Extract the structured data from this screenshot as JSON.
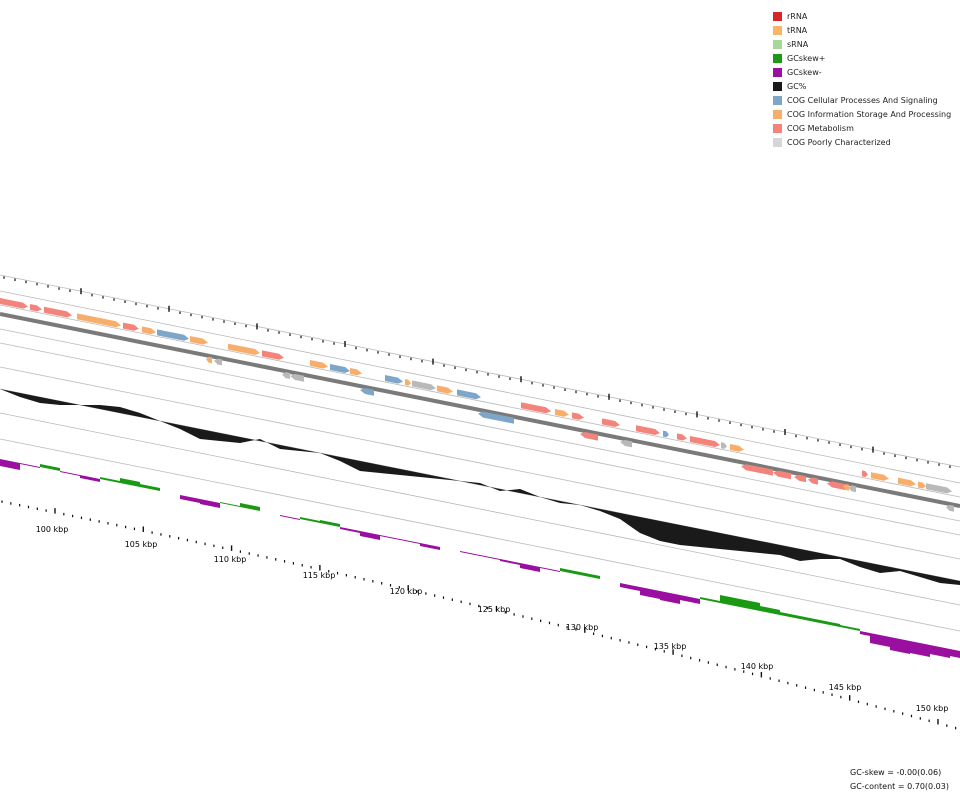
{
  "legend": {
    "items": [
      {
        "label": "rRNA",
        "color": "#d62728"
      },
      {
        "label": "tRNA",
        "color": "#fbb36a"
      },
      {
        "label": "sRNA",
        "color": "#a6d996"
      },
      {
        "label": "GCskew+",
        "color": "#1a9a12"
      },
      {
        "label": "GCskew-",
        "color": "#9a0fa0"
      },
      {
        "label": "GC%",
        "color": "#1a1a1a"
      },
      {
        "label": "COG Cellular Processes And Signaling",
        "color": "#7ea6c9"
      },
      {
        "label": "COG Information Storage And Processing",
        "color": "#f8ae6a"
      },
      {
        "label": "COG Metabolism",
        "color": "#f4837c"
      },
      {
        "label": "COG Poorly Characterized",
        "color": "#d6d6d6"
      }
    ]
  },
  "axis": {
    "unit": "kbp",
    "labels": [
      "100 kbp",
      "105 kbp",
      "110 kbp",
      "115 kbp",
      "120 kbp",
      "125 kbp",
      "130 kbp",
      "135 kbp",
      "140 kbp",
      "145 kbp",
      "150 kbp"
    ]
  },
  "stats": {
    "gc_skew": "GC-skew = -0.00(0.06)",
    "gc_content": "GC-content = 0.70(0.03)"
  }
}
